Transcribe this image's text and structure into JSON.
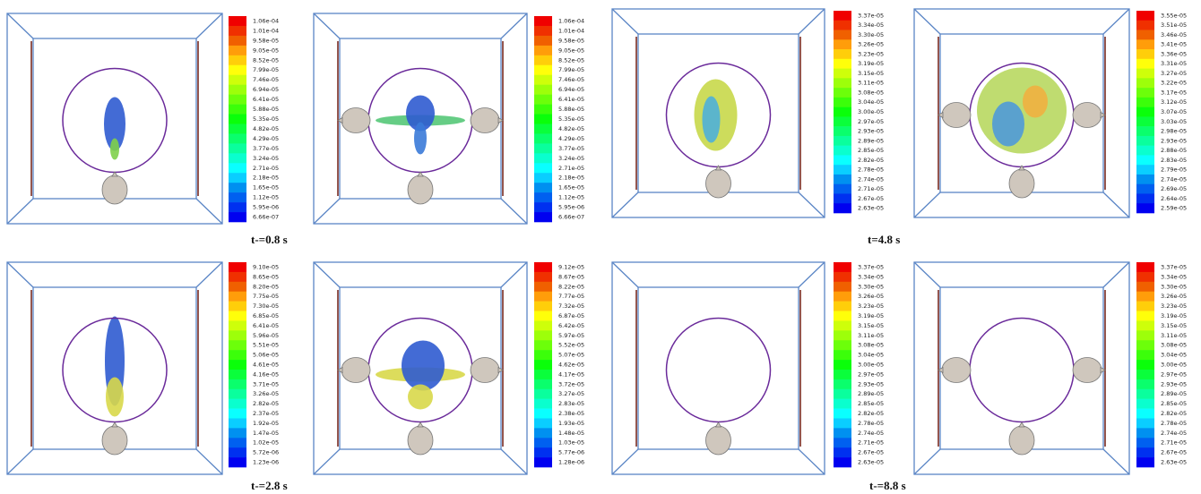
{
  "panels": [
    {
      "colorbar_labels": [
        "1.06e-04",
        "1.01e-04",
        "9.58e-05",
        "9.05e-05",
        "8.52e-05",
        "7.99e-05",
        "7.46e-05",
        "6.94e-05",
        "6.41e-05",
        "5.88e-05",
        "5.35e-05",
        "4.82e-05",
        "4.29e-05",
        "3.77e-05",
        "3.24e-05",
        "2.71e-05",
        "2.18e-05",
        "1.65e-05",
        "1.12e-05",
        "5.95e-06",
        "6.66e-07"
      ]
    },
    {
      "colorbar_labels": [
        "1.06e-04",
        "1.01e-04",
        "9.58e-05",
        "9.05e-05",
        "8.52e-05",
        "7.99e-05",
        "7.46e-05",
        "6.94e-05",
        "6.41e-05",
        "5.88e-05",
        "5.35e-05",
        "4.82e-05",
        "4.29e-05",
        "3.77e-05",
        "3.24e-05",
        "2.71e-05",
        "2.18e-05",
        "1.65e-05",
        "1.12e-05",
        "5.95e-06",
        "6.66e-07"
      ]
    },
    {
      "colorbar_labels": [
        "3.37e-05",
        "3.34e-05",
        "3.30e-05",
        "3.26e-05",
        "3.23e-05",
        "3.19e-05",
        "3.15e-05",
        "3.11e-05",
        "3.08e-05",
        "3.04e-05",
        "3.00e-05",
        "2.97e-05",
        "2.93e-05",
        "2.89e-05",
        "2.85e-05",
        "2.82e-05",
        "2.78e-05",
        "2.74e-05",
        "2.71e-05",
        "2.67e-05",
        "2.63e-05"
      ]
    },
    {
      "colorbar_labels": [
        "3.55e-05",
        "3.51e-05",
        "3.46e-05",
        "3.41e-05",
        "3.36e-05",
        "3.31e-05",
        "3.27e-05",
        "3.22e-05",
        "3.17e-05",
        "3.12e-05",
        "3.07e-05",
        "3.03e-05",
        "2.98e-05",
        "2.93e-05",
        "2.88e-05",
        "2.83e-05",
        "2.79e-05",
        "2.74e-05",
        "2.69e-05",
        "2.64e-05",
        "2.59e-05"
      ]
    },
    {
      "colorbar_labels": [
        "9.10e-05",
        "8.65e-05",
        "8.20e-05",
        "7.75e-05",
        "7.30e-05",
        "6.85e-05",
        "6.41e-05",
        "5.96e-05",
        "5.51e-05",
        "5.06e-05",
        "4.61e-05",
        "4.16e-05",
        "3.71e-05",
        "3.26e-05",
        "2.82e-05",
        "2.37e-05",
        "1.92e-05",
        "1.47e-05",
        "1.02e-05",
        "5.72e-06",
        "1.23e-06"
      ]
    },
    {
      "colorbar_labels": [
        "9.12e-05",
        "8.67e-05",
        "8.22e-05",
        "7.77e-05",
        "7.32e-05",
        "6.87e-05",
        "6.42e-05",
        "5.97e-05",
        "5.52e-05",
        "5.07e-05",
        "4.62e-05",
        "4.17e-05",
        "3.72e-05",
        "3.27e-05",
        "2.83e-05",
        "2.38e-05",
        "1.93e-05",
        "1.48e-05",
        "1.03e-05",
        "5.77e-06",
        "1.28e-06"
      ]
    },
    {
      "colorbar_labels": [
        "3.37e-05",
        "3.34e-05",
        "3.30e-05",
        "3.26e-05",
        "3.23e-05",
        "3.19e-05",
        "3.15e-05",
        "3.11e-05",
        "3.08e-05",
        "3.04e-05",
        "3.00e-05",
        "2.97e-05",
        "2.93e-05",
        "2.89e-05",
        "2.85e-05",
        "2.82e-05",
        "2.78e-05",
        "2.74e-05",
        "2.71e-05",
        "2.67e-05",
        "2.63e-05"
      ]
    },
    {
      "colorbar_labels": [
        "3.37e-05",
        "3.34e-05",
        "3.30e-05",
        "3.26e-05",
        "3.23e-05",
        "3.19e-05",
        "3.15e-05",
        "3.11e-05",
        "3.08e-05",
        "3.04e-05",
        "3.00e-05",
        "2.97e-05",
        "2.93e-05",
        "2.89e-05",
        "2.85e-05",
        "2.82e-05",
        "2.78e-05",
        "2.74e-05",
        "2.71e-05",
        "2.67e-05",
        "2.63e-05"
      ]
    }
  ],
  "captions": [
    "t-=0.8 s",
    "t=4.8 s",
    "t-=2.8 s",
    "t-=8.8 s"
  ]
}
